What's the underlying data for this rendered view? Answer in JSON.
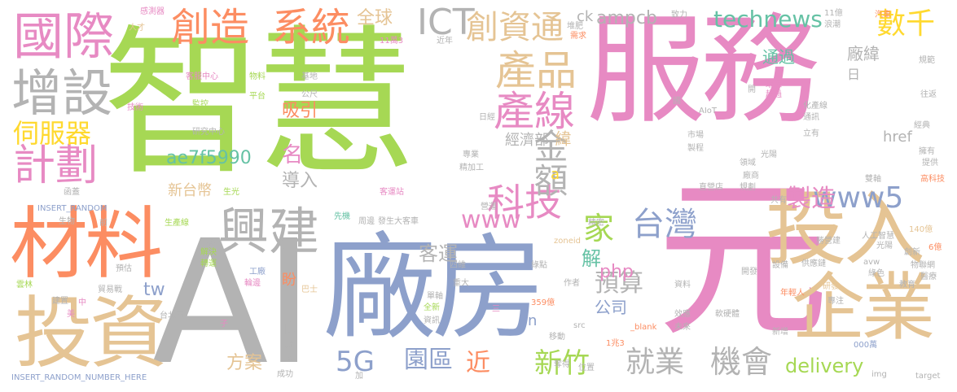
{
  "palette": {
    "green": "#a6d854",
    "pink": "#e78ac3",
    "blue": "#8da0cb",
    "tan": "#e5c494",
    "orange": "#fc8d62",
    "teal": "#66c2a5",
    "yellow": "#ffd92f",
    "gray": "#b3b3b3"
  },
  "words": {
    "zhihui": "智慧",
    "fuwu": "服務",
    "ai": "AI",
    "changfang": "廠房",
    "yuan": "元",
    "touzi": "投資",
    "cailiao": "材料",
    "touru": "投入",
    "qiye": "企業",
    "guoji": "國際",
    "zengshe": "增設",
    "xingjian": "興建",
    "jihua": "計劃",
    "cifuqi": "伺服器",
    "chuangzao": "創造",
    "xitong": "系統",
    "chuangzitong": "創資通",
    "chanpin": "產品",
    "chanxian": "產線",
    "keji": "科技",
    "jiue": "金額",
    "shuqian": "數千",
    "www5": "www5",
    "ict": "ICT",
    "quanqiu": "全球",
    "technews": "technews",
    "ampcb": "ampcb",
    "taiwan": "台灣",
    "jia": "家",
    "www": "www",
    "xiyin": "吸引",
    "ming": "名",
    "hash": "ae7f5990",
    "daoru": "導入",
    "xintaibi": "新台幣",
    "jiuye": "就業",
    "jihui": "機會",
    "xinzhu": "新竹",
    "yuanqu": "園區",
    "jin": "近",
    "g5": "5G",
    "fangan": "方案",
    "delivery": "delivery",
    "yusuan": "預算",
    "gongsi": "公司",
    "php": "php",
    "keyun": "客運",
    "zhizao": "製造",
    "jingjibu": "經濟部",
    "tw": "tw",
    "href": "href",
    "changwei": "廠緯",
    "tongguo": "通過",
    "jie": "解",
    "insert_long": "INSERT_RANDOM_NUMBER_HERE",
    "insert_short": "INSERT_RANDOM",
    "pan": "盼",
    "yi": "億",
    "n": "n",
    "a": "a",
    "wei": "緯",
    "ri": "日",
    "ck": "ck",
    "shengchanxian": "生產線",
    "kechezhan": "客運站",
    "jiejue": "解決",
    "gongchang": "工廠",
    "maoyizhan": "貿易戰",
    "yunlin": "雲林",
    "taibeishi": "台北市",
    "yanjiuzhongxin": "研究中心",
    "zhuanyun": "轉運",
    "zhanshi": "展示",
    "lunbian": "輪邊",
    "yuyue": "預估",
    "rengongzhihui": "人工智慧",
    "guangyang": "光陽",
    "zhizaoqi": "製程",
    "changshang": "廠商",
    "lingyu": "領域",
    "shichang": "市場",
    "ziliao": "資料",
    "xinghao": "型號",
    "kaifa": "開發",
    "shebei": "設備",
    "gongyinglian": "供應鏈",
    "nianqingren": "年輕人",
    "yanfa": "研發",
    "qihang": "領航",
    "zhuanzhu": "專注",
    "jiaoyu": "教育",
    "wulianwang": "物聯網",
    "yiliao": "醫療",
    "lvse": "綠色",
    "chuangxin": "創新",
    "bangyin": "勝營建",
    "avw": "avw",
    "yi140": "140億",
    "yi6": "6億",
    "xiaolv": "效應",
    "ruanyingti": "軟硬體",
    "xinzeng": "新增",
    "target": "target",
    "img": "img",
    "blank": "_blank",
    "src": "src",
    "yi1zhao3": "1兆3",
    "yi359": "359億",
    "zoneid": "zoneid",
    "duoshu": "奪得",
    "wanfang": "萬方",
    "yizhao": "億兆",
    "yunduan": "雲端",
    "sihui": "四維",
    "lvdian": "綠點",
    "zuozhe": "作者",
    "shengguang": "生光",
    "aiot": "AIoT",
    "guozu": "國",
    "dianzi": "電子",
    "huanbao": "環保",
    "chaoyue": "超過",
    "tonghe": "通訊",
    "tongkong": "同控",
    "shuangzhou": "雙軸",
    "qiche": "汽車",
    "guihua": "規範",
    "wangluo": "往返",
    "gaokeji": "高科技",
    "gongneng": "功能",
    "yongyou": "擁有",
    "tigong": "提供",
    "jinchang": "進場",
    "pinfan": "頻繁",
    "qi": "期",
    "lishi": "立有",
    "huachanxian": "化產線",
    "gongye": "工業",
    "zhizhi": "直營店",
    "gongyou": "共有",
    "zaixian": "在線",
    "jingdian": "經典",
    "ganganyu": "崗位",
    "yingyu": "營運",
    "fangsheng": "發生大客車",
    "bashi": "巴士",
    "danzhou": "單軸",
    "quandian": "全新",
    "zixun": "資訊",
    "xianji": "先機",
    "zhouyi": "周邊",
    "jiehe": "結合",
    "zhuanye": "專業",
    "wanli": "萬里",
    "lianjie": "連結",
    "jixie": "機械",
    "wuliao": "物料",
    "jidi": "基地",
    "kehuzhongxin": "客服中心",
    "jishu": "技術",
    "jiankong": "監控",
    "gongkong": "公尺",
    "pingtai": "平台",
    "ganceqi": "感測器",
    "rencai": "人才",
    "hui": "會",
    "duiqi": "堆肥",
    "jinnian": "近年",
    "xuqiu": "需求",
    "zhili": "致力",
    "yi11": "11億",
    "langchao": "浪潮",
    "wan11": "11萬3",
    "qiyejia": "企業家",
    "chenggong": "成功",
    "jia2": "加",
    "hua": "化",
    "laizi": "來自",
    "weilai": "未來",
    "changqi": "長期",
    "rijie": "日經",
    "yidong": "移動",
    "ziyuan": "資源",
    "yingyong": "應用",
    "guihua2": "規劃",
    "cun": "存",
    "shengtai": "生態",
    "chuanshu": "傳輸",
    "wan000": "000萬",
    "xin": "新",
    "tiao": "條",
    "kuaisu": "快速",
    "yingxiang": "影響",
    "wanggou": "網購",
    "yitong": "一同",
    "zhongda": "重大",
    "yu": "於",
    "g": "G",
    "mei": "美",
    "zhong": "中",
    "zi": "子",
    "yu2": "預",
    "shou": "受",
    "liang": "兩",
    "gong": "共",
    "zhan": "站",
    "quyu": "區域",
    "shi": "市",
    "san": "三",
    "yi2": "億",
    "qian": "前",
    "weizhi": "位置",
    "shengwu": "生物",
    "jianzao": "建置",
    "jingtai": "精密",
    "baozhuang": "包裝",
    "renti": "人體",
    "yunsuan": "運算",
    "hanzai": "函蓋",
    "zhuangtai": "狀態",
    "kai": "開",
    "gu": "股",
    "bu": "補",
    "liangchan": "量產",
    "jingjia": "精加工",
    "xiang": "向",
    "lei": "類",
    "shuju": "數據",
    "gongzuo": "工作",
    "shenghuo": "生活",
    "zhuli": "助力"
  }
}
